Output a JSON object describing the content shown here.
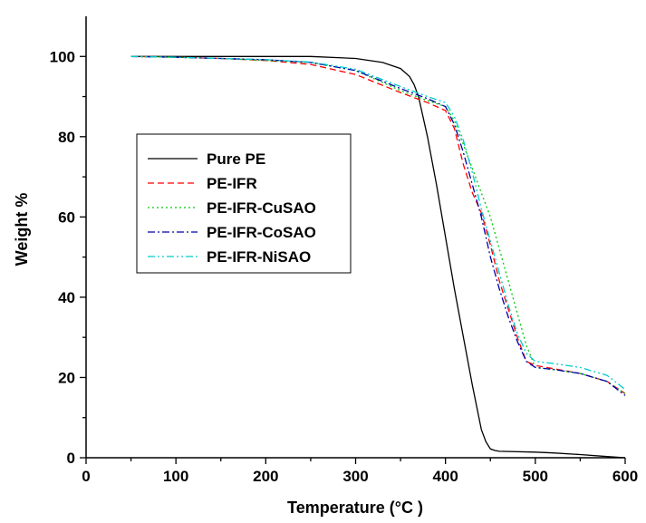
{
  "chart_data": {
    "type": "line",
    "title": "",
    "xlabel": "Temperature (°C )",
    "ylabel": "Weight %",
    "xlim": [
      0,
      600
    ],
    "ylim": [
      0,
      110
    ],
    "x_ticks": [
      0,
      100,
      200,
      300,
      400,
      500,
      600
    ],
    "y_ticks": [
      0,
      20,
      40,
      60,
      80,
      100
    ],
    "grid": false,
    "legend_position": "center-left",
    "series": [
      {
        "name": "Pure PE",
        "color": "#000000",
        "dash": "solid",
        "x": [
          50,
          100,
          150,
          200,
          250,
          300,
          330,
          350,
          360,
          365,
          370,
          380,
          390,
          400,
          410,
          420,
          430,
          440,
          445,
          450,
          455,
          460,
          500,
          520,
          550,
          580,
          600
        ],
        "y": [
          100,
          100,
          100,
          100,
          100,
          99.5,
          98.5,
          97,
          95,
          93,
          90,
          80,
          68,
          55,
          42,
          30,
          18,
          7,
          4,
          2.2,
          1.8,
          1.6,
          1.4,
          1.2,
          0.8,
          0.3,
          0
        ]
      },
      {
        "name": "PE-IFR",
        "color": "#ff0000",
        "dash": "dashed",
        "x": [
          50,
          100,
          150,
          200,
          250,
          300,
          350,
          380,
          400,
          410,
          420,
          430,
          440,
          450,
          460,
          470,
          480,
          490,
          500,
          520,
          550,
          580,
          600
        ],
        "y": [
          100,
          99.8,
          99.5,
          99,
          98,
          95.5,
          91,
          88.5,
          86.5,
          82,
          73,
          66,
          61,
          53,
          44,
          37,
          30,
          24,
          23,
          22.2,
          21,
          19,
          16
        ]
      },
      {
        "name": "PE-IFR-CuSAO",
        "color": "#00cc00",
        "dash": "dotted",
        "x": [
          50,
          100,
          150,
          200,
          250,
          300,
          350,
          380,
          400,
          410,
          420,
          430,
          440,
          450,
          460,
          470,
          480,
          490,
          500,
          520,
          550,
          580,
          600
        ],
        "y": [
          100,
          99.8,
          99.5,
          99,
          98.5,
          96.5,
          91.5,
          89,
          87.5,
          84,
          78,
          72,
          66,
          60,
          52,
          44,
          36,
          28,
          22.5,
          22,
          21,
          19,
          16
        ]
      },
      {
        "name": "PE-IFR-CoSAO",
        "color": "#0000aa",
        "dash": "dashdot",
        "x": [
          50,
          100,
          150,
          200,
          250,
          300,
          350,
          380,
          400,
          410,
          420,
          430,
          440,
          450,
          460,
          470,
          480,
          490,
          500,
          520,
          550,
          580,
          600
        ],
        "y": [
          100,
          99.8,
          99.5,
          99.2,
          98.5,
          96.5,
          92,
          89.5,
          87.5,
          83,
          76,
          68,
          60,
          50,
          42,
          35,
          29,
          24,
          22.5,
          22,
          21,
          19,
          15.5
        ]
      },
      {
        "name": "PE-IFR-NiSAO",
        "color": "#00cccc",
        "dash": "dashdotdot",
        "x": [
          50,
          100,
          150,
          200,
          250,
          300,
          350,
          380,
          400,
          410,
          420,
          430,
          440,
          450,
          460,
          470,
          480,
          490,
          500,
          520,
          550,
          580,
          600
        ],
        "y": [
          100,
          99.8,
          99.5,
          99.2,
          98.6,
          96.8,
          92.5,
          90,
          88.5,
          85,
          79,
          71,
          62,
          54,
          46,
          38,
          31,
          26,
          24,
          23.5,
          22.5,
          20.5,
          17
        ]
      }
    ]
  }
}
